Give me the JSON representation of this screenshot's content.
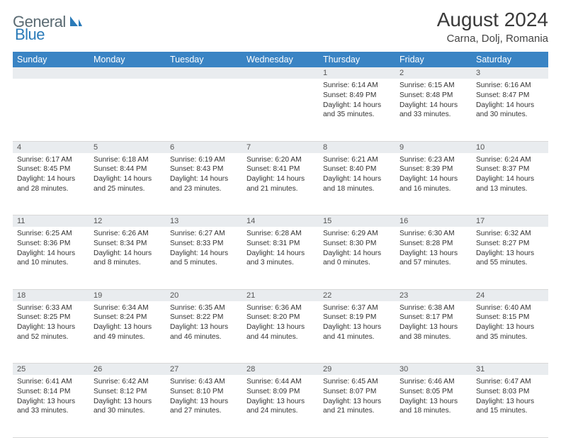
{
  "brand": {
    "part1": "General",
    "part2": "Blue"
  },
  "title": "August 2024",
  "location": "Carna, Dolj, Romania",
  "weekday_labels": [
    "Sunday",
    "Monday",
    "Tuesday",
    "Wednesday",
    "Thursday",
    "Friday",
    "Saturday"
  ],
  "colors": {
    "header_bg": "#3a84c4",
    "header_fg": "#ffffff",
    "daynum_bg": "#e9ecef",
    "brand_gray": "#5a6a72",
    "brand_blue": "#2a7ab8"
  },
  "first_weekday_index": 4,
  "days": [
    {
      "n": 1,
      "sunrise": "6:14 AM",
      "sunset": "8:49 PM",
      "daylight": "14 hours and 35 minutes."
    },
    {
      "n": 2,
      "sunrise": "6:15 AM",
      "sunset": "8:48 PM",
      "daylight": "14 hours and 33 minutes."
    },
    {
      "n": 3,
      "sunrise": "6:16 AM",
      "sunset": "8:47 PM",
      "daylight": "14 hours and 30 minutes."
    },
    {
      "n": 4,
      "sunrise": "6:17 AM",
      "sunset": "8:45 PM",
      "daylight": "14 hours and 28 minutes."
    },
    {
      "n": 5,
      "sunrise": "6:18 AM",
      "sunset": "8:44 PM",
      "daylight": "14 hours and 25 minutes."
    },
    {
      "n": 6,
      "sunrise": "6:19 AM",
      "sunset": "8:43 PM",
      "daylight": "14 hours and 23 minutes."
    },
    {
      "n": 7,
      "sunrise": "6:20 AM",
      "sunset": "8:41 PM",
      "daylight": "14 hours and 21 minutes."
    },
    {
      "n": 8,
      "sunrise": "6:21 AM",
      "sunset": "8:40 PM",
      "daylight": "14 hours and 18 minutes."
    },
    {
      "n": 9,
      "sunrise": "6:23 AM",
      "sunset": "8:39 PM",
      "daylight": "14 hours and 16 minutes."
    },
    {
      "n": 10,
      "sunrise": "6:24 AM",
      "sunset": "8:37 PM",
      "daylight": "14 hours and 13 minutes."
    },
    {
      "n": 11,
      "sunrise": "6:25 AM",
      "sunset": "8:36 PM",
      "daylight": "14 hours and 10 minutes."
    },
    {
      "n": 12,
      "sunrise": "6:26 AM",
      "sunset": "8:34 PM",
      "daylight": "14 hours and 8 minutes."
    },
    {
      "n": 13,
      "sunrise": "6:27 AM",
      "sunset": "8:33 PM",
      "daylight": "14 hours and 5 minutes."
    },
    {
      "n": 14,
      "sunrise": "6:28 AM",
      "sunset": "8:31 PM",
      "daylight": "14 hours and 3 minutes."
    },
    {
      "n": 15,
      "sunrise": "6:29 AM",
      "sunset": "8:30 PM",
      "daylight": "14 hours and 0 minutes."
    },
    {
      "n": 16,
      "sunrise": "6:30 AM",
      "sunset": "8:28 PM",
      "daylight": "13 hours and 57 minutes."
    },
    {
      "n": 17,
      "sunrise": "6:32 AM",
      "sunset": "8:27 PM",
      "daylight": "13 hours and 55 minutes."
    },
    {
      "n": 18,
      "sunrise": "6:33 AM",
      "sunset": "8:25 PM",
      "daylight": "13 hours and 52 minutes."
    },
    {
      "n": 19,
      "sunrise": "6:34 AM",
      "sunset": "8:24 PM",
      "daylight": "13 hours and 49 minutes."
    },
    {
      "n": 20,
      "sunrise": "6:35 AM",
      "sunset": "8:22 PM",
      "daylight": "13 hours and 46 minutes."
    },
    {
      "n": 21,
      "sunrise": "6:36 AM",
      "sunset": "8:20 PM",
      "daylight": "13 hours and 44 minutes."
    },
    {
      "n": 22,
      "sunrise": "6:37 AM",
      "sunset": "8:19 PM",
      "daylight": "13 hours and 41 minutes."
    },
    {
      "n": 23,
      "sunrise": "6:38 AM",
      "sunset": "8:17 PM",
      "daylight": "13 hours and 38 minutes."
    },
    {
      "n": 24,
      "sunrise": "6:40 AM",
      "sunset": "8:15 PM",
      "daylight": "13 hours and 35 minutes."
    },
    {
      "n": 25,
      "sunrise": "6:41 AM",
      "sunset": "8:14 PM",
      "daylight": "13 hours and 33 minutes."
    },
    {
      "n": 26,
      "sunrise": "6:42 AM",
      "sunset": "8:12 PM",
      "daylight": "13 hours and 30 minutes."
    },
    {
      "n": 27,
      "sunrise": "6:43 AM",
      "sunset": "8:10 PM",
      "daylight": "13 hours and 27 minutes."
    },
    {
      "n": 28,
      "sunrise": "6:44 AM",
      "sunset": "8:09 PM",
      "daylight": "13 hours and 24 minutes."
    },
    {
      "n": 29,
      "sunrise": "6:45 AM",
      "sunset": "8:07 PM",
      "daylight": "13 hours and 21 minutes."
    },
    {
      "n": 30,
      "sunrise": "6:46 AM",
      "sunset": "8:05 PM",
      "daylight": "13 hours and 18 minutes."
    },
    {
      "n": 31,
      "sunrise": "6:47 AM",
      "sunset": "8:03 PM",
      "daylight": "13 hours and 15 minutes."
    }
  ],
  "labels": {
    "sunrise": "Sunrise:",
    "sunset": "Sunset:",
    "daylight": "Daylight:"
  }
}
